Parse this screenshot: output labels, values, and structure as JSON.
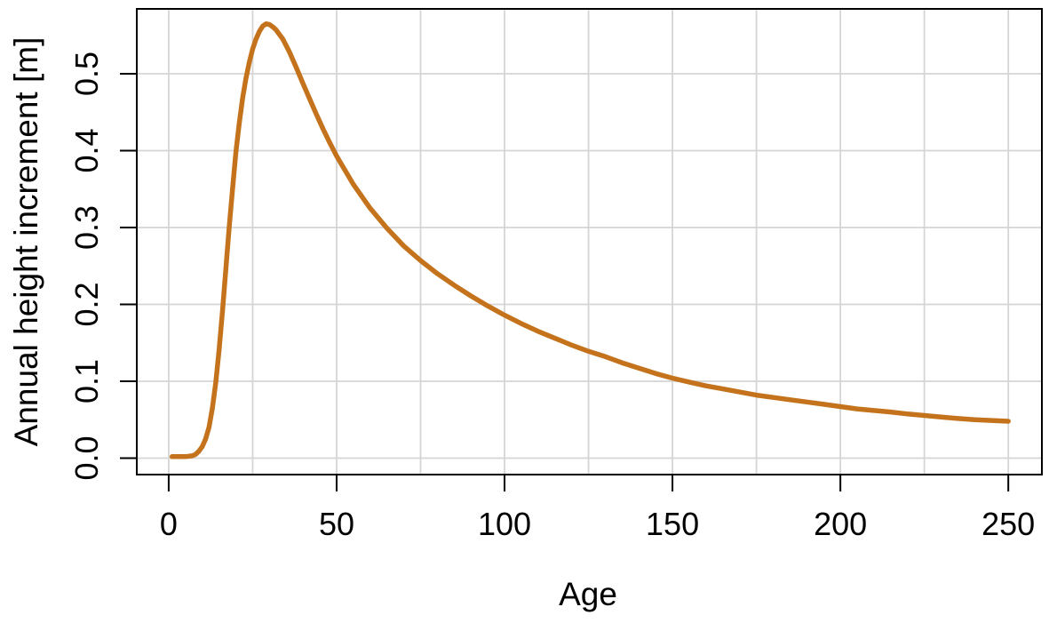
{
  "chart_data": {
    "type": "line",
    "title": "",
    "xlabel": "Age",
    "ylabel": "Annual height increment [m]",
    "xlim": [
      -9.5,
      260
    ],
    "ylim": [
      -0.0214,
      0.5844
    ],
    "grid": true,
    "legend": "none",
    "x_ticks": [
      {
        "value": 0,
        "label": "0"
      },
      {
        "value": 50,
        "label": "50"
      },
      {
        "value": 100,
        "label": "100"
      },
      {
        "value": 150,
        "label": "150"
      },
      {
        "value": 200,
        "label": "200"
      },
      {
        "value": 250,
        "label": "250"
      }
    ],
    "y_ticks": [
      {
        "value": 0.0,
        "label": "0.0"
      },
      {
        "value": 0.1,
        "label": "0.1"
      },
      {
        "value": 0.2,
        "label": "0.2"
      },
      {
        "value": 0.3,
        "label": "0.3"
      },
      {
        "value": 0.4,
        "label": "0.4"
      },
      {
        "value": 0.5,
        "label": "0.5"
      }
    ],
    "x_gridlines": [
      0,
      25,
      50,
      75,
      100,
      125,
      150,
      175,
      200,
      225,
      250
    ],
    "y_gridlines": [
      0.0,
      0.1,
      0.2,
      0.3,
      0.4,
      0.5
    ],
    "series": [
      {
        "color": "#C4731C",
        "peak": {
          "age": 29,
          "value": 0.565
        },
        "points": [
          [
            1,
            0.002
          ],
          [
            3,
            0.002
          ],
          [
            5,
            0.002
          ],
          [
            7,
            0.003
          ],
          [
            8,
            0.005
          ],
          [
            9,
            0.009
          ],
          [
            10,
            0.015
          ],
          [
            11,
            0.025
          ],
          [
            12,
            0.04
          ],
          [
            13,
            0.065
          ],
          [
            14,
            0.098
          ],
          [
            15,
            0.14
          ],
          [
            16,
            0.19
          ],
          [
            17,
            0.245
          ],
          [
            18,
            0.3
          ],
          [
            19,
            0.35
          ],
          [
            20,
            0.397
          ],
          [
            21,
            0.435
          ],
          [
            22,
            0.468
          ],
          [
            23,
            0.494
          ],
          [
            24,
            0.515
          ],
          [
            25,
            0.532
          ],
          [
            26,
            0.545
          ],
          [
            27,
            0.555
          ],
          [
            28,
            0.562
          ],
          [
            29,
            0.565
          ],
          [
            30,
            0.564
          ],
          [
            31,
            0.561
          ],
          [
            32,
            0.557
          ],
          [
            34,
            0.545
          ],
          [
            36,
            0.528
          ],
          [
            38,
            0.508
          ],
          [
            40,
            0.487
          ],
          [
            42,
            0.467
          ],
          [
            44,
            0.447
          ],
          [
            46,
            0.428
          ],
          [
            48,
            0.41
          ],
          [
            50,
            0.393
          ],
          [
            55,
            0.356
          ],
          [
            60,
            0.325
          ],
          [
            65,
            0.299
          ],
          [
            70,
            0.276
          ],
          [
            75,
            0.257
          ],
          [
            80,
            0.24
          ],
          [
            85,
            0.225
          ],
          [
            90,
            0.211
          ],
          [
            95,
            0.198
          ],
          [
            100,
            0.186
          ],
          [
            105,
            0.175
          ],
          [
            110,
            0.165
          ],
          [
            115,
            0.156
          ],
          [
            120,
            0.147
          ],
          [
            125,
            0.139
          ],
          [
            130,
            0.132
          ],
          [
            135,
            0.124
          ],
          [
            140,
            0.117
          ],
          [
            145,
            0.11
          ],
          [
            150,
            0.104
          ],
          [
            155,
            0.099
          ],
          [
            160,
            0.094
          ],
          [
            165,
            0.09
          ],
          [
            170,
            0.086
          ],
          [
            175,
            0.082
          ],
          [
            180,
            0.079
          ],
          [
            185,
            0.076
          ],
          [
            190,
            0.073
          ],
          [
            195,
            0.07
          ],
          [
            200,
            0.067
          ],
          [
            205,
            0.064
          ],
          [
            210,
            0.062
          ],
          [
            215,
            0.06
          ],
          [
            220,
            0.0575
          ],
          [
            225,
            0.0555
          ],
          [
            230,
            0.0535
          ],
          [
            235,
            0.0515
          ],
          [
            240,
            0.05
          ],
          [
            245,
            0.049
          ],
          [
            250,
            0.048
          ]
        ]
      }
    ]
  },
  "style": {
    "background": "#FFFFFF",
    "line_color": "#C4731C",
    "grid_color": "#D5D5D5",
    "axis_color": "#000000",
    "text_color": "#000000"
  }
}
